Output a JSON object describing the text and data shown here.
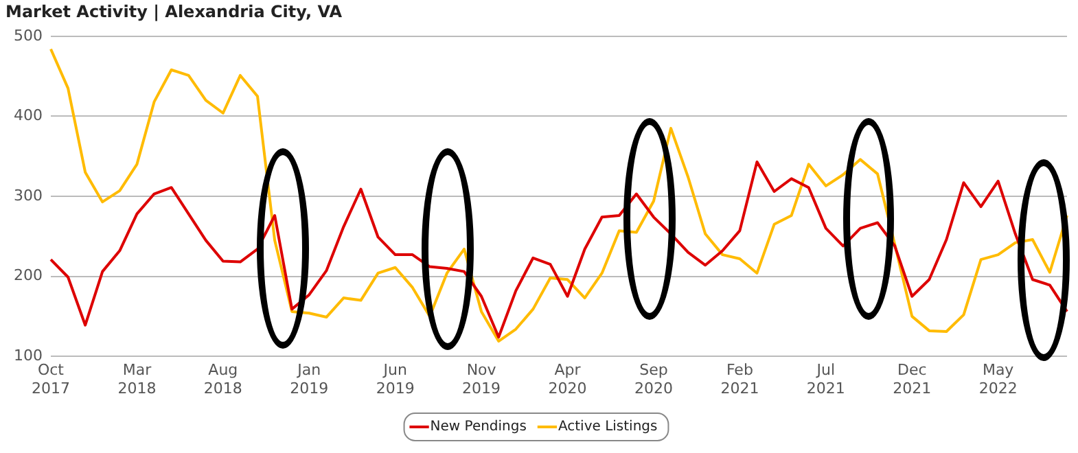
{
  "chart_data": {
    "type": "line",
    "title": "Market Activity | Alexandria City, VA",
    "categories": [
      "Oct 2017",
      null,
      null,
      null,
      null,
      "Mar 2018",
      null,
      null,
      null,
      null,
      "Aug 2018",
      null,
      null,
      null,
      null,
      "Jan 2019",
      null,
      null,
      null,
      null,
      "Jun 2019",
      null,
      null,
      null,
      null,
      "Nov 2019",
      null,
      null,
      null,
      null,
      "Apr 2020",
      null,
      null,
      null,
      null,
      "Sep 2020",
      null,
      null,
      null,
      null,
      "Feb 2021",
      null,
      null,
      null,
      null,
      "Jul 2021",
      null,
      null,
      null,
      null,
      "Dec 2021",
      null,
      null,
      null,
      null,
      "May 2022",
      null,
      null,
      null,
      null
    ],
    "series": [
      {
        "name": "New Pendings",
        "color": "#dd0000",
        "values": [
          221,
          199,
          139,
          206,
          232,
          278,
          303,
          311,
          278,
          245,
          219,
          218,
          234,
          276,
          159,
          177,
          207,
          262,
          309,
          249,
          227,
          227,
          212,
          210,
          206,
          175,
          124,
          182,
          223,
          215,
          175,
          234,
          274,
          276,
          303,
          274,
          253,
          230,
          214,
          232,
          257,
          343,
          306,
          322,
          311,
          260,
          238,
          260,
          267,
          238,
          175,
          196,
          246,
          317,
          287,
          319,
          253,
          196,
          189,
          156
        ]
      },
      {
        "name": "Active Listings",
        "color": "#ffbb00",
        "values": [
          484,
          435,
          330,
          293,
          307,
          340,
          418,
          458,
          451,
          420,
          404,
          451,
          425,
          245,
          156,
          154,
          149,
          173,
          170,
          204,
          211,
          186,
          150,
          204,
          234,
          156,
          119,
          134,
          159,
          198,
          196,
          173,
          204,
          257,
          255,
          294,
          385,
          324,
          253,
          227,
          222,
          204,
          265,
          276,
          340,
          313,
          327,
          346,
          328,
          240,
          150,
          132,
          131,
          152,
          221,
          227,
          242,
          246,
          205,
          276
        ]
      }
    ],
    "ylim": [
      100,
      500
    ],
    "yticks": [
      100,
      200,
      300,
      400,
      500
    ],
    "grid": "y",
    "legend": "bottom",
    "marker": "none",
    "line_style": "solid"
  }
}
